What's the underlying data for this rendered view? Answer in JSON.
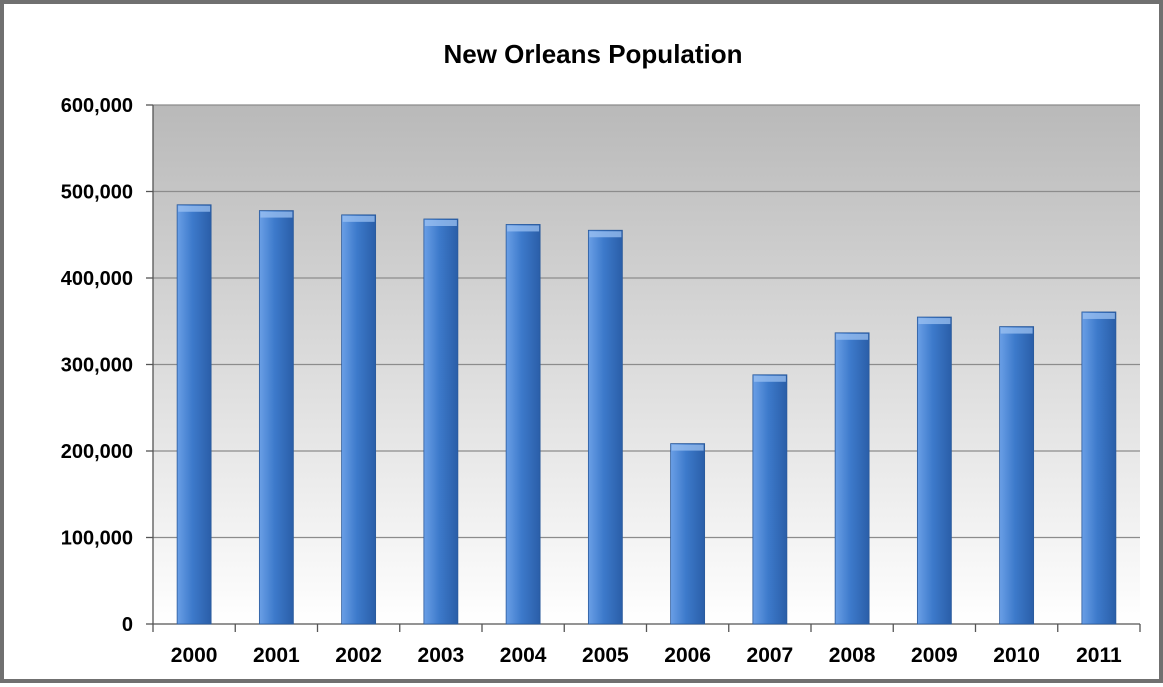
{
  "colors": {
    "bar_light": "#6a9fe6",
    "bar_mid": "#3d7acb",
    "bar_dark": "#2a5ea8",
    "plot_top": "#b9b9b9",
    "plot_bottom": "#ffffff",
    "gridline": "#8c8c8c",
    "frame_border": "#707070"
  },
  "chart_data": {
    "type": "bar",
    "title": "New Orleans Population",
    "xlabel": "",
    "ylabel": "",
    "categories": [
      "2000",
      "2001",
      "2002",
      "2003",
      "2004",
      "2005",
      "2006",
      "2007",
      "2008",
      "2009",
      "2010",
      "2011"
    ],
    "values": [
      484674,
      477932,
      473009,
      468216,
      461915,
      455188,
      208548,
      288113,
      336644,
      354850,
      343829,
      360740
    ],
    "ylim": [
      0,
      600000
    ],
    "yticks": [
      0,
      100000,
      200000,
      300000,
      400000,
      500000,
      600000
    ],
    "ytick_labels": [
      "0",
      "100,000",
      "200,000",
      "300,000",
      "400,000",
      "500,000",
      "600,000"
    ],
    "grid": true,
    "legend": "none"
  }
}
